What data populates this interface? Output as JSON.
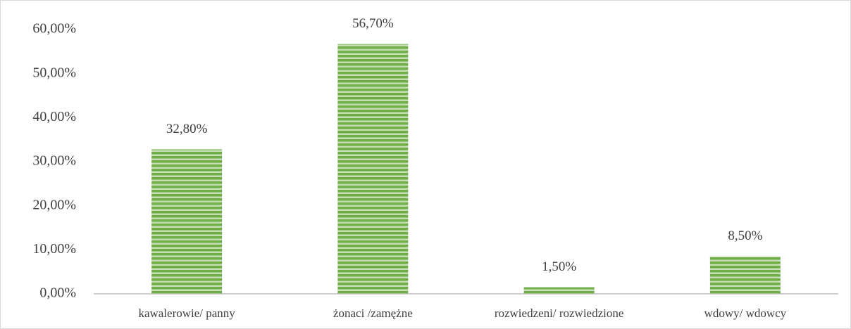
{
  "chart_data": {
    "type": "bar",
    "categories": [
      "kawalerowie/ panny",
      "żonaci /zamężne",
      "rozwiedzeni/ rozwiedzione",
      "wdowy/ wdowcy"
    ],
    "values": [
      32.8,
      56.7,
      1.5,
      8.5
    ],
    "value_labels": [
      "32,80%",
      "56,70%",
      "1,50%",
      "8,50%"
    ],
    "color": "#70ad47",
    "ylim": [
      0,
      60
    ],
    "yticks": [
      {
        "value": 0,
        "label": "0,00%"
      },
      {
        "value": 10,
        "label": "10,00%"
      },
      {
        "value": 20,
        "label": "20,00%"
      },
      {
        "value": 30,
        "label": "30,00%"
      },
      {
        "value": 40,
        "label": "40,00%"
      },
      {
        "value": 50,
        "label": "50,00%"
      },
      {
        "value": 60,
        "label": "60,00%"
      }
    ],
    "grid": false
  }
}
